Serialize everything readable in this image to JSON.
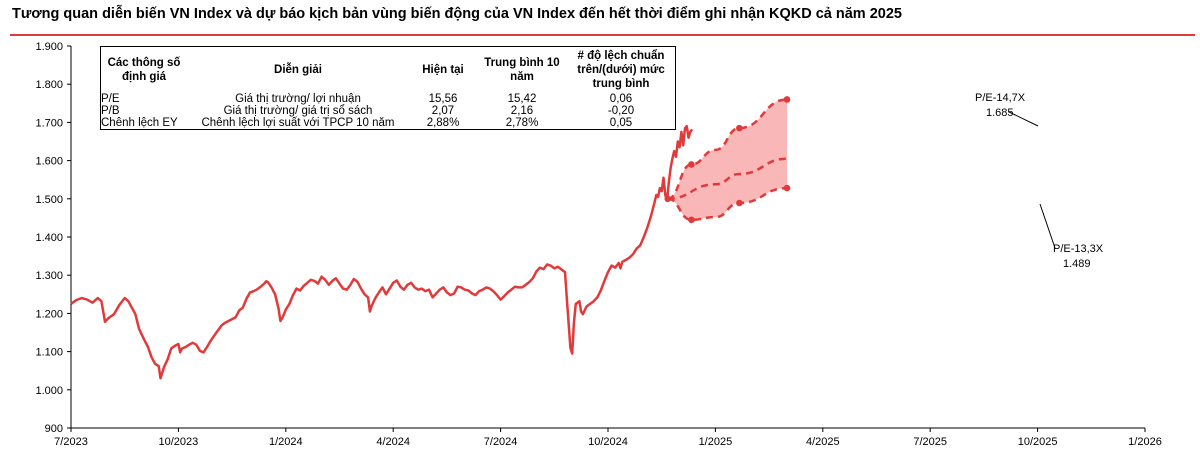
{
  "title": "Tương quan diễn biến VN Index và dự báo kịch bản vùng biến động của VN Index đến hết thời điểm ghi nhận KQKD cả năm 2025",
  "table": {
    "headers": [
      "Các thông số định giá",
      "Diễn giải",
      "Hiện tại",
      "Trung bình 10 năm",
      "# độ lệch chuẩn trên/(dưới) mức trung bình"
    ],
    "rows": [
      [
        "P/E",
        "Giá thị trường/ lợi nhuận",
        "15,56",
        "15,42",
        "0,06"
      ],
      [
        "P/B",
        "Giá thị trường/ giá trị sổ sách",
        "2,07",
        "2,16",
        "-0,20"
      ],
      [
        "Chênh lệch EY",
        "Chênh lệch lợi suất với TPCP 10 năm",
        "2,88%",
        "2,78%",
        "0,05"
      ]
    ]
  },
  "annotations": {
    "upper_label": "P/E-14,7X",
    "upper_value": "1.685",
    "lower_label": "P/E-13,3X",
    "lower_value": "1.489"
  },
  "colors": {
    "line": "#e23a3a",
    "band": "#f9b7b7",
    "accent": "#e23a3a"
  },
  "chart_data": {
    "type": "line",
    "x_axis": [
      "7/2023",
      "10/2023",
      "1/2024",
      "4/2024",
      "7/2024",
      "10/2024",
      "1/2025",
      "4/2025",
      "7/2025",
      "10/2025",
      "1/2026"
    ],
    "ylim": [
      900,
      1900
    ],
    "yticks": [
      "900",
      "1.000",
      "1.100",
      "1.200",
      "1.300",
      "1.400",
      "1.500",
      "1.600",
      "1.700",
      "1.800",
      "1.900"
    ],
    "grid": false,
    "series": [
      {
        "values": [
          [
            0,
            1225
          ],
          [
            0.15,
            1235
          ],
          [
            0.3,
            1240
          ],
          [
            0.45,
            1236
          ],
          [
            0.6,
            1228
          ],
          [
            0.75,
            1240
          ],
          [
            0.85,
            1232
          ],
          [
            0.95,
            1178
          ],
          [
            1.05,
            1188
          ],
          [
            1.2,
            1198
          ],
          [
            1.35,
            1222
          ],
          [
            1.5,
            1240
          ],
          [
            1.6,
            1232
          ],
          [
            1.7,
            1215
          ],
          [
            1.8,
            1198
          ],
          [
            1.9,
            1160
          ],
          [
            2.0,
            1140
          ],
          [
            2.05,
            1130
          ],
          [
            2.15,
            1112
          ],
          [
            2.25,
            1085
          ],
          [
            2.35,
            1068
          ],
          [
            2.45,
            1062
          ],
          [
            2.5,
            1030
          ],
          [
            2.55,
            1045
          ],
          [
            2.6,
            1060
          ],
          [
            2.7,
            1080
          ],
          [
            2.8,
            1108
          ],
          [
            2.9,
            1115
          ],
          [
            3.0,
            1120
          ],
          [
            3.05,
            1098
          ],
          [
            3.1,
            1108
          ],
          [
            3.2,
            1112
          ],
          [
            3.3,
            1118
          ],
          [
            3.4,
            1123
          ],
          [
            3.5,
            1118
          ],
          [
            3.6,
            1102
          ],
          [
            3.7,
            1098
          ],
          [
            3.8,
            1112
          ],
          [
            3.9,
            1128
          ],
          [
            4.0,
            1142
          ],
          [
            4.1,
            1155
          ],
          [
            4.2,
            1168
          ],
          [
            4.3,
            1175
          ],
          [
            4.4,
            1180
          ],
          [
            4.5,
            1185
          ],
          [
            4.6,
            1190
          ],
          [
            4.7,
            1208
          ],
          [
            4.8,
            1215
          ],
          [
            4.9,
            1238
          ],
          [
            5.0,
            1255
          ],
          [
            5.1,
            1258
          ],
          [
            5.2,
            1263
          ],
          [
            5.3,
            1270
          ],
          [
            5.4,
            1278
          ],
          [
            5.45,
            1284
          ],
          [
            5.5,
            1282
          ],
          [
            5.6,
            1268
          ],
          [
            5.7,
            1250
          ],
          [
            5.8,
            1212
          ],
          [
            5.85,
            1180
          ],
          [
            5.9,
            1188
          ],
          [
            5.95,
            1198
          ],
          [
            6.0,
            1210
          ],
          [
            6.1,
            1225
          ],
          [
            6.2,
            1248
          ],
          [
            6.3,
            1265
          ],
          [
            6.4,
            1260
          ],
          [
            6.5,
            1272
          ],
          [
            6.6,
            1280
          ],
          [
            6.7,
            1288
          ],
          [
            6.8,
            1285
          ],
          [
            6.9,
            1278
          ],
          [
            7.0,
            1296
          ],
          [
            7.1,
            1288
          ],
          [
            7.2,
            1275
          ],
          [
            7.3,
            1285
          ],
          [
            7.4,
            1292
          ],
          [
            7.5,
            1278
          ],
          [
            7.6,
            1265
          ],
          [
            7.7,
            1262
          ],
          [
            7.8,
            1274
          ],
          [
            7.9,
            1290
          ],
          [
            8.0,
            1283
          ],
          [
            8.1,
            1265
          ],
          [
            8.2,
            1250
          ],
          [
            8.3,
            1242
          ],
          [
            8.35,
            1205
          ],
          [
            8.4,
            1220
          ],
          [
            8.5,
            1240
          ],
          [
            8.6,
            1255
          ],
          [
            8.7,
            1268
          ],
          [
            8.8,
            1250
          ],
          [
            8.9,
            1265
          ],
          [
            9.0,
            1280
          ],
          [
            9.1,
            1286
          ],
          [
            9.2,
            1270
          ],
          [
            9.3,
            1262
          ],
          [
            9.4,
            1275
          ],
          [
            9.5,
            1280
          ],
          [
            9.6,
            1268
          ],
          [
            9.7,
            1262
          ],
          [
            9.8,
            1265
          ],
          [
            9.9,
            1258
          ],
          [
            10.0,
            1262
          ],
          [
            10.1,
            1242
          ],
          [
            10.2,
            1252
          ],
          [
            10.3,
            1262
          ],
          [
            10.4,
            1268
          ],
          [
            10.5,
            1255
          ],
          [
            10.6,
            1248
          ],
          [
            10.7,
            1252
          ],
          [
            10.8,
            1270
          ],
          [
            10.9,
            1268
          ],
          [
            11.0,
            1262
          ],
          [
            11.1,
            1260
          ],
          [
            11.2,
            1252
          ],
          [
            11.3,
            1248
          ],
          [
            11.4,
            1258
          ],
          [
            11.5,
            1262
          ],
          [
            11.6,
            1268
          ],
          [
            11.7,
            1265
          ],
          [
            11.8,
            1258
          ],
          [
            11.9,
            1248
          ],
          [
            12.0,
            1236
          ],
          [
            12.1,
            1245
          ],
          [
            12.2,
            1255
          ],
          [
            12.3,
            1262
          ],
          [
            12.4,
            1270
          ],
          [
            12.5,
            1268
          ],
          [
            12.6,
            1268
          ],
          [
            12.7,
            1275
          ],
          [
            12.8,
            1282
          ],
          [
            12.9,
            1292
          ],
          [
            13.0,
            1310
          ],
          [
            13.1,
            1320
          ],
          [
            13.2,
            1316
          ],
          [
            13.3,
            1328
          ],
          [
            13.4,
            1325
          ],
          [
            13.5,
            1318
          ],
          [
            13.6,
            1322
          ],
          [
            13.7,
            1315
          ],
          [
            13.8,
            1308
          ],
          [
            13.85,
            1240
          ],
          [
            13.9,
            1175
          ],
          [
            13.95,
            1110
          ],
          [
            14.0,
            1095
          ],
          [
            14.05,
            1178
          ],
          [
            14.1,
            1225
          ],
          [
            14.2,
            1232
          ],
          [
            14.25,
            1205
          ],
          [
            14.3,
            1198
          ],
          [
            14.4,
            1218
          ],
          [
            14.5,
            1225
          ],
          [
            14.6,
            1232
          ],
          [
            14.7,
            1242
          ],
          [
            14.8,
            1260
          ],
          [
            14.9,
            1285
          ],
          [
            15.0,
            1308
          ],
          [
            15.1,
            1325
          ],
          [
            15.2,
            1320
          ],
          [
            15.3,
            1332
          ],
          [
            15.35,
            1318
          ],
          [
            15.4,
            1335
          ],
          [
            15.5,
            1340
          ],
          [
            15.6,
            1346
          ],
          [
            15.7,
            1355
          ],
          [
            15.8,
            1370
          ],
          [
            15.9,
            1378
          ],
          [
            16.0,
            1400
          ],
          [
            16.1,
            1425
          ],
          [
            16.2,
            1455
          ],
          [
            16.3,
            1490
          ],
          [
            16.35,
            1510
          ],
          [
            16.4,
            1505
          ],
          [
            16.45,
            1528
          ],
          [
            16.5,
            1520
          ],
          [
            16.55,
            1555
          ],
          [
            16.6,
            1510
          ],
          [
            16.65,
            1495
          ],
          [
            16.7,
            1545
          ],
          [
            16.75,
            1580
          ],
          [
            16.8,
            1605
          ],
          [
            16.85,
            1625
          ],
          [
            16.9,
            1610
          ],
          [
            16.95,
            1650
          ],
          [
            17.0,
            1635
          ],
          [
            17.05,
            1675
          ],
          [
            17.1,
            1640
          ],
          [
            17.15,
            1685
          ],
          [
            17.2,
            1690
          ],
          [
            17.25,
            1660
          ],
          [
            17.3,
            1675
          ],
          [
            17.35,
            1682
          ]
        ]
      },
      {
        "name": "P/E-14,7X",
        "values": [
          [
            16.67,
            1500
          ],
          [
            17.33,
            1590
          ],
          [
            18.0,
            1628
          ],
          [
            18.67,
            1685
          ],
          [
            20.0,
            1760
          ]
        ]
      },
      {
        "name": "P/E-13,3X",
        "values": [
          [
            16.67,
            1500
          ],
          [
            17.33,
            1445
          ],
          [
            18.0,
            1452
          ],
          [
            18.67,
            1489
          ],
          [
            20.0,
            1528
          ]
        ]
      },
      {
        "values": [
          [
            16.67,
            1500
          ],
          [
            18.0,
            1538
          ],
          [
            18.67,
            1565
          ],
          [
            20.0,
            1605
          ]
        ]
      }
    ]
  }
}
